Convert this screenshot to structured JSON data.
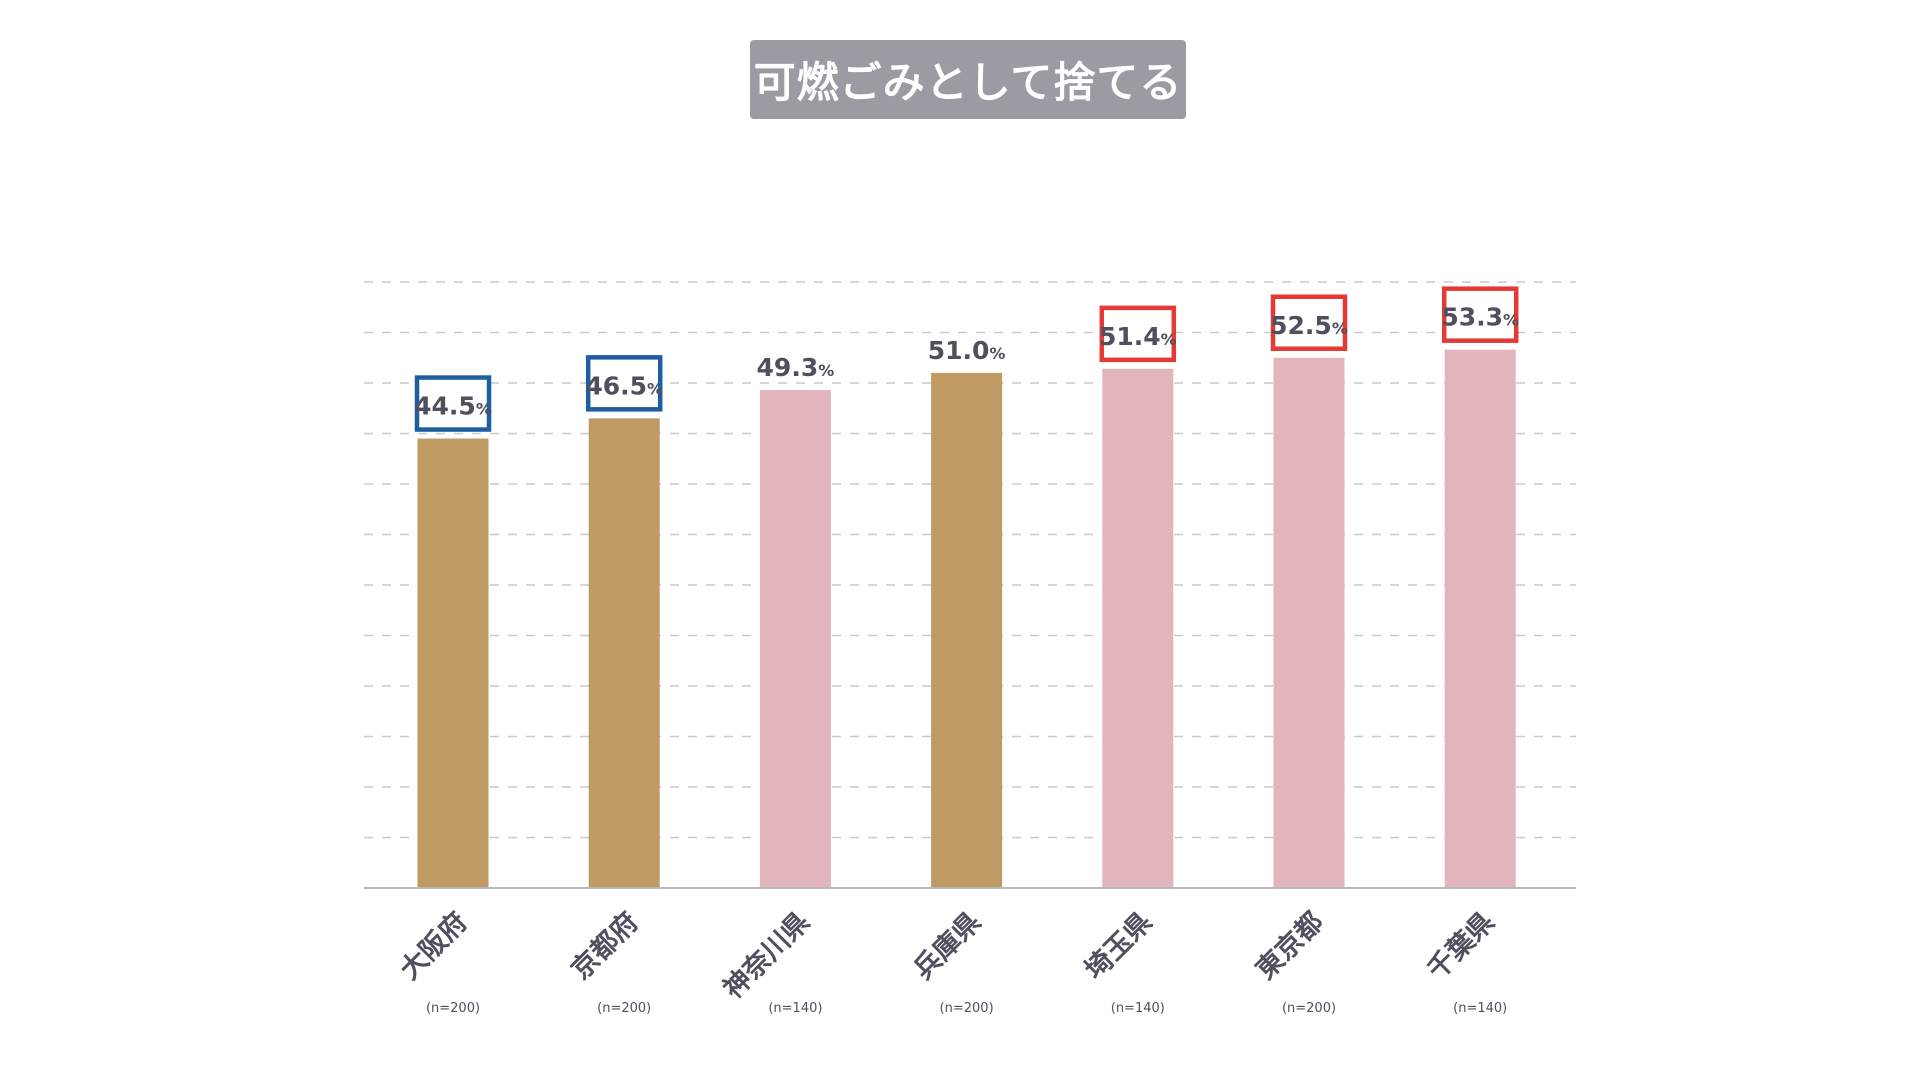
{
  "chart_data": {
    "type": "bar",
    "title": "可燃ごみとして捨てる",
    "categories": [
      "大阪府",
      "京都府",
      "神奈川県",
      "兵庫県",
      "埼玉県",
      "東京都",
      "千葉県"
    ],
    "sample_sizes": [
      "(n=200)",
      "(n=200)",
      "(n=140)",
      "(n=200)",
      "(n=140)",
      "(n=200)",
      "(n=140)"
    ],
    "values": [
      44.5,
      46.5,
      49.3,
      51.0,
      51.4,
      52.5,
      53.3
    ],
    "value_labels": [
      "44.5",
      "46.5",
      "49.3",
      "51.0",
      "51.4",
      "52.5",
      "53.3"
    ],
    "unit": "%",
    "bar_colors": [
      "#bf9a63",
      "#bf9a63",
      "#e2b5bd",
      "#bf9a63",
      "#e2b5bd",
      "#e2b5bd",
      "#e2b5bd"
    ],
    "highlight": [
      "blue",
      "blue",
      "none",
      "none",
      "red",
      "red",
      "red"
    ],
    "highlight_colors": {
      "blue": "#1f5fa0",
      "red": "#e53935"
    },
    "ylim": [
      0,
      60
    ],
    "xlabel": "",
    "ylabel": "",
    "grid": true,
    "gridline_style": "dashed"
  }
}
